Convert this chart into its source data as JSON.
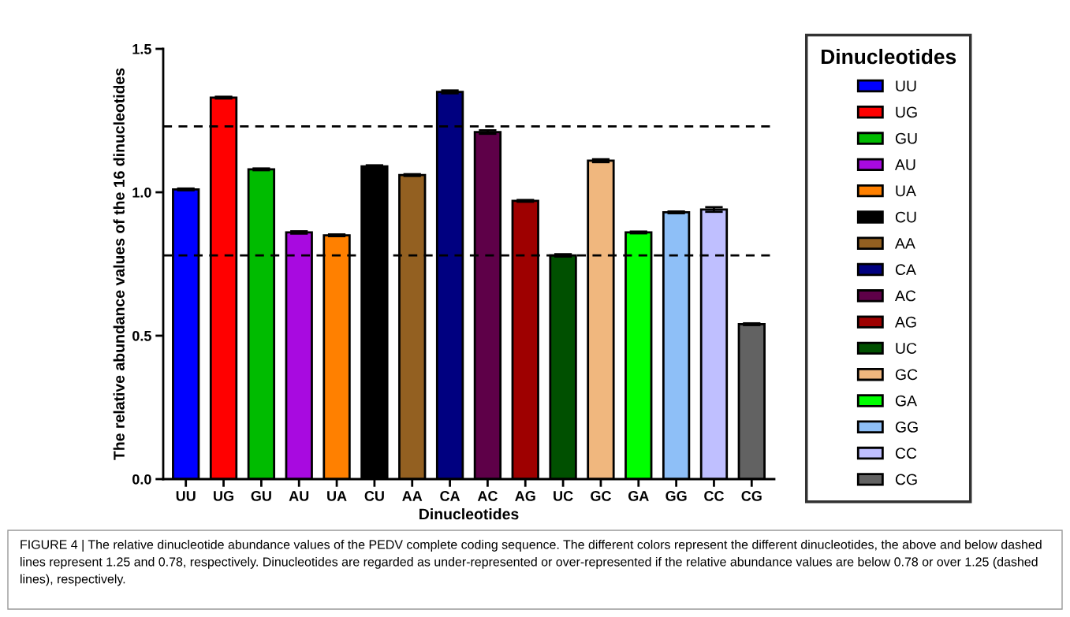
{
  "chart_data": {
    "type": "bar",
    "stacked": true,
    "xlabel": "Dinucleotides",
    "ylabel": "The relative abundance values of the 16 dinucleotides",
    "legend_title": "Dinucleotides",
    "categories": [
      "UU",
      "UG",
      "GU",
      "AU",
      "UA",
      "CU",
      "AA",
      "CA",
      "AC",
      "AG",
      "UC",
      "GC",
      "GA",
      "GG",
      "CC",
      "CG"
    ],
    "series": [
      {
        "name": "UU",
        "color": "#0000ff",
        "values": [
          1.01,
          null,
          null,
          null,
          null,
          null,
          null,
          null,
          null,
          null,
          null,
          null,
          null,
          null,
          null,
          null
        ],
        "errors": [
          0.003,
          null,
          null,
          null,
          null,
          null,
          null,
          null,
          null,
          null,
          null,
          null,
          null,
          null,
          null,
          null
        ]
      },
      {
        "name": "UG",
        "color": "#ff0000",
        "values": [
          null,
          1.33,
          null,
          null,
          null,
          null,
          null,
          null,
          null,
          null,
          null,
          null,
          null,
          null,
          null,
          null
        ],
        "errors": [
          null,
          0.003,
          null,
          null,
          null,
          null,
          null,
          null,
          null,
          null,
          null,
          null,
          null,
          null,
          null,
          null
        ]
      },
      {
        "name": "GU",
        "color": "#00bb00",
        "values": [
          null,
          null,
          1.08,
          null,
          null,
          null,
          null,
          null,
          null,
          null,
          null,
          null,
          null,
          null,
          null,
          null
        ],
        "errors": [
          null,
          null,
          0.003,
          null,
          null,
          null,
          null,
          null,
          null,
          null,
          null,
          null,
          null,
          null,
          null,
          null
        ]
      },
      {
        "name": "AU",
        "color": "#a80ae0",
        "values": [
          null,
          null,
          null,
          0.86,
          null,
          null,
          null,
          null,
          null,
          null,
          null,
          null,
          null,
          null,
          null,
          null
        ],
        "errors": [
          null,
          null,
          null,
          0.004,
          null,
          null,
          null,
          null,
          null,
          null,
          null,
          null,
          null,
          null,
          null,
          null
        ]
      },
      {
        "name": "UA",
        "color": "#ff8000",
        "values": [
          null,
          null,
          null,
          null,
          0.85,
          null,
          null,
          null,
          null,
          null,
          null,
          null,
          null,
          null,
          null,
          null
        ],
        "errors": [
          null,
          null,
          null,
          null,
          0.003,
          null,
          null,
          null,
          null,
          null,
          null,
          null,
          null,
          null,
          null,
          null
        ]
      },
      {
        "name": "CU",
        "color": "#000000",
        "values": [
          null,
          null,
          null,
          null,
          null,
          1.09,
          null,
          null,
          null,
          null,
          null,
          null,
          null,
          null,
          null,
          null
        ],
        "errors": [
          null,
          null,
          null,
          null,
          null,
          0.004,
          null,
          null,
          null,
          null,
          null,
          null,
          null,
          null,
          null,
          null
        ]
      },
      {
        "name": "AA",
        "color": "#936021",
        "values": [
          null,
          null,
          null,
          null,
          null,
          null,
          1.06,
          null,
          null,
          null,
          null,
          null,
          null,
          null,
          null,
          null
        ],
        "errors": [
          null,
          null,
          null,
          null,
          null,
          null,
          0.003,
          null,
          null,
          null,
          null,
          null,
          null,
          null,
          null,
          null
        ]
      },
      {
        "name": "CA",
        "color": "#000080",
        "values": [
          null,
          null,
          null,
          null,
          null,
          null,
          null,
          1.35,
          null,
          null,
          null,
          null,
          null,
          null,
          null,
          null
        ],
        "errors": [
          null,
          null,
          null,
          null,
          null,
          null,
          null,
          0.005,
          null,
          null,
          null,
          null,
          null,
          null,
          null,
          null
        ]
      },
      {
        "name": "AC",
        "color": "#5e0048",
        "values": [
          null,
          null,
          null,
          null,
          null,
          null,
          null,
          null,
          1.21,
          null,
          null,
          null,
          null,
          null,
          null,
          null
        ],
        "errors": [
          null,
          null,
          null,
          null,
          null,
          null,
          null,
          null,
          0.006,
          null,
          null,
          null,
          null,
          null,
          null,
          null
        ]
      },
      {
        "name": "AG",
        "color": "#9e0000",
        "values": [
          null,
          null,
          null,
          null,
          null,
          null,
          null,
          null,
          null,
          0.97,
          null,
          null,
          null,
          null,
          null,
          null
        ],
        "errors": [
          null,
          null,
          null,
          null,
          null,
          null,
          null,
          null,
          null,
          0.003,
          null,
          null,
          null,
          null,
          null,
          null
        ]
      },
      {
        "name": "UC",
        "color": "#005000",
        "values": [
          null,
          null,
          null,
          null,
          null,
          null,
          null,
          null,
          null,
          null,
          0.78,
          null,
          null,
          null,
          null,
          null
        ],
        "errors": [
          null,
          null,
          null,
          null,
          null,
          null,
          null,
          null,
          null,
          null,
          0.004,
          null,
          null,
          null,
          null,
          null
        ]
      },
      {
        "name": "GC",
        "color": "#f0b77e",
        "values": [
          null,
          null,
          null,
          null,
          null,
          null,
          null,
          null,
          null,
          null,
          null,
          1.11,
          null,
          null,
          null,
          null
        ],
        "errors": [
          null,
          null,
          null,
          null,
          null,
          null,
          null,
          null,
          null,
          null,
          null,
          0.005,
          null,
          null,
          null,
          null
        ]
      },
      {
        "name": "GA",
        "color": "#00ff00",
        "values": [
          null,
          null,
          null,
          null,
          null,
          null,
          null,
          null,
          null,
          null,
          null,
          null,
          0.86,
          null,
          null,
          null
        ],
        "errors": [
          null,
          null,
          null,
          null,
          null,
          null,
          null,
          null,
          null,
          null,
          null,
          null,
          0.003,
          null,
          null,
          null
        ]
      },
      {
        "name": "GG",
        "color": "#8ebff7",
        "values": [
          null,
          null,
          null,
          null,
          null,
          null,
          null,
          null,
          null,
          null,
          null,
          null,
          null,
          0.93,
          null,
          null
        ],
        "errors": [
          null,
          null,
          null,
          null,
          null,
          null,
          null,
          null,
          null,
          null,
          null,
          null,
          null,
          0.003,
          null,
          null
        ]
      },
      {
        "name": "CC",
        "color": "#bfbfff",
        "values": [
          null,
          null,
          null,
          null,
          null,
          null,
          null,
          null,
          null,
          null,
          null,
          null,
          null,
          null,
          0.94,
          null
        ],
        "errors": [
          null,
          null,
          null,
          null,
          null,
          null,
          null,
          null,
          null,
          null,
          null,
          null,
          null,
          null,
          0.008,
          null
        ]
      },
      {
        "name": "CG",
        "color": "#626262",
        "values": [
          null,
          null,
          null,
          null,
          null,
          null,
          null,
          null,
          null,
          null,
          null,
          null,
          null,
          null,
          null,
          0.54
        ],
        "errors": [
          null,
          null,
          null,
          null,
          null,
          null,
          null,
          null,
          null,
          null,
          null,
          null,
          null,
          null,
          null,
          0.003
        ]
      }
    ],
    "ylim": [
      0,
      1.5
    ],
    "yticks": [
      {
        "value": 0,
        "label": "0.0"
      },
      0.5,
      {
        "value": 1,
        "label": "1.0"
      },
      1.5
    ],
    "ref_lines": [
      {
        "axis": "y",
        "value": 1.23,
        "line_style": "dashed",
        "color": "#000000"
      },
      {
        "axis": "y",
        "value": 0.78,
        "line_style": "dashed",
        "color": "#000000"
      }
    ],
    "legend": "right",
    "annotations": [
      "FIGURE 4 | The relative dinucleotide abundance values of the PEDV complete coding sequence. The different colors represent the different dinucleotides, the above and below dashed lines represent 1.25 and 0.78, respectively. Dinucleotides are regarded as under-represented or over-represented if the relative abundance values are below 0.78 or over 1.25 (dashed lines), respectively."
    ]
  }
}
